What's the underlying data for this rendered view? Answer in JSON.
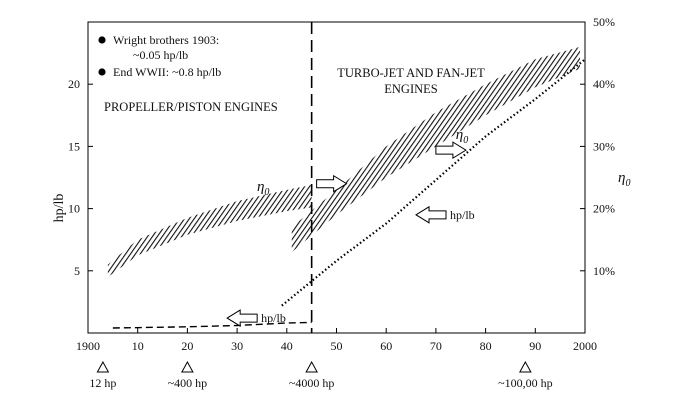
{
  "chart_data": {
    "type": "line",
    "x_axis": {
      "range": [
        1900,
        2000
      ],
      "ticks": [
        {
          "value": 1900,
          "label": "1900"
        },
        {
          "value": 1910,
          "label": "10"
        },
        {
          "value": 1920,
          "label": "20"
        },
        {
          "value": 1930,
          "label": "30"
        },
        {
          "value": 1940,
          "label": "40"
        },
        {
          "value": 1950,
          "label": "50"
        },
        {
          "value": 1960,
          "label": "60"
        },
        {
          "value": 1970,
          "label": "70"
        },
        {
          "value": 1980,
          "label": "80"
        },
        {
          "value": 1990,
          "label": "90"
        },
        {
          "value": 2000,
          "label": "2000"
        }
      ]
    },
    "y_left": {
      "label": "hp/lb",
      "range": [
        0,
        25
      ],
      "ticks": [
        {
          "value": 5,
          "label": "5"
        },
        {
          "value": 10,
          "label": "10"
        },
        {
          "value": 15,
          "label": "15"
        },
        {
          "value": 20,
          "label": "20"
        }
      ]
    },
    "y_right": {
      "label": "η",
      "label_sub": "0",
      "range": [
        0,
        50
      ],
      "ticks": [
        {
          "value": 10,
          "label": "10%"
        },
        {
          "value": 20,
          "label": "20%"
        },
        {
          "value": 30,
          "label": "30%"
        },
        {
          "value": 40,
          "label": "40%"
        },
        {
          "value": 50,
          "label": "50%"
        }
      ]
    },
    "divider_year": 1945,
    "regions": {
      "left": "PROPELLER/PISTON ENGINES",
      "right_line1": "TURBO-JET AND FAN-JET",
      "right_line2": "ENGINES"
    },
    "legend_notes": [
      {
        "line1": "Wright brothers 1903:",
        "line2": "~0.05 hp/lb"
      },
      {
        "line1": "End WWII: ~0.8 hp/lb",
        "line2": ""
      }
    ],
    "milestones": [
      {
        "year": 1903,
        "label": "12 hp"
      },
      {
        "year": 1920,
        "label": "~400 hp"
      },
      {
        "year": 1945,
        "label": "~4000 hp"
      },
      {
        "year": 1988,
        "label": "~100,00 hp"
      }
    ],
    "series": [
      {
        "kind": "efficiency_band",
        "axis": "right",
        "points": [
          [
            1904,
            9.0,
            11.0
          ],
          [
            1910,
            12.5,
            15.0
          ],
          [
            1920,
            15.8,
            18.5
          ],
          [
            1930,
            18.0,
            21.2
          ],
          [
            1940,
            19.6,
            23.0
          ],
          [
            1945,
            20.2,
            23.8
          ]
        ]
      },
      {
        "kind": "efficiency_band",
        "axis": "right",
        "points": [
          [
            1941,
            13.0,
            17.0
          ],
          [
            1950,
            19.0,
            23.0
          ],
          [
            1960,
            25.0,
            30.0
          ],
          [
            1970,
            30.0,
            35.5
          ],
          [
            1980,
            35.0,
            40.0
          ],
          [
            1990,
            39.5,
            44.0
          ],
          [
            1999,
            42.5,
            46.0
          ]
        ]
      },
      {
        "kind": "dashed",
        "axis": "left",
        "points": [
          [
            1905,
            0.4
          ],
          [
            1920,
            0.5
          ],
          [
            1930,
            0.6
          ],
          [
            1940,
            0.8
          ],
          [
            1945,
            0.85
          ]
        ]
      },
      {
        "kind": "dotted",
        "axis": "left",
        "points": [
          [
            1939,
            2.2
          ],
          [
            1950,
            5.8
          ],
          [
            1960,
            8.8
          ],
          [
            1970,
            12.3
          ],
          [
            1980,
            15.8
          ],
          [
            1990,
            18.8
          ],
          [
            2000,
            22.0
          ]
        ]
      }
    ],
    "annotations": [
      {
        "text": "hp/lb",
        "arrow": "left",
        "x": 1928,
        "y": 1.2
      },
      {
        "text": "hp/lb",
        "arrow": "left",
        "x": 1966,
        "y": 9.5
      },
      {
        "text": "η",
        "sub": "0",
        "x": 1934,
        "y": 11.4
      },
      {
        "text": "η",
        "sub": "0",
        "x": 1974,
        "y": 15.6
      },
      {
        "text": "",
        "arrow": "right",
        "x": 1946,
        "y": 12.0
      },
      {
        "text": "",
        "arrow": "right",
        "x": 1970,
        "y": 14.7
      }
    ]
  }
}
